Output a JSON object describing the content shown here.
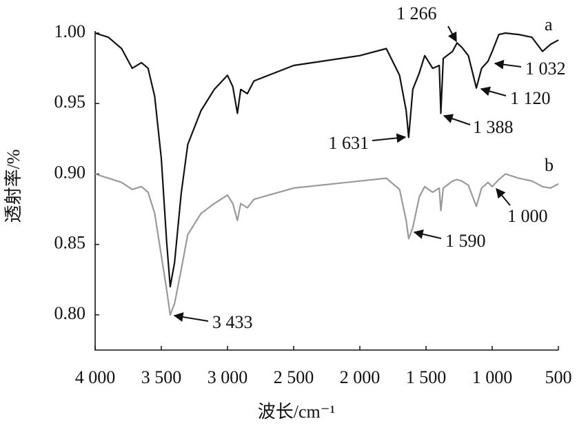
{
  "chart_data": {
    "type": "line",
    "x_label": "波长/cm⁻¹",
    "y_label": "透射率/%",
    "x": [
      4000,
      3900,
      3800,
      3720,
      3650,
      3600,
      3550,
      3500,
      3460,
      3433,
      3400,
      3350,
      3300,
      3200,
      3100,
      3000,
      2960,
      2925,
      2900,
      2850,
      2800,
      2500,
      2000,
      1800,
      1700,
      1650,
      1631,
      1600,
      1550,
      1510,
      1450,
      1400,
      1388,
      1370,
      1300,
      1266,
      1230,
      1180,
      1120,
      1080,
      1032,
      1000,
      950,
      900,
      800,
      700,
      620,
      560,
      500
    ],
    "series": [
      {
        "name": "a",
        "color": "#111111",
        "values": [
          1.0,
          0.997,
          0.989,
          0.975,
          0.979,
          0.975,
          0.955,
          0.911,
          0.852,
          0.82,
          0.837,
          0.886,
          0.921,
          0.945,
          0.96,
          0.97,
          0.962,
          0.943,
          0.96,
          0.957,
          0.966,
          0.977,
          0.984,
          0.989,
          0.97,
          0.945,
          0.926,
          0.96,
          0.972,
          0.984,
          0.975,
          0.977,
          0.943,
          0.982,
          0.987,
          0.993,
          0.99,
          0.984,
          0.961,
          0.975,
          0.98,
          0.987,
          0.999,
          1.0,
          0.999,
          0.997,
          0.987,
          0.992,
          0.995
        ]
      },
      {
        "name": "b",
        "color": "#999999",
        "values": [
          0.9,
          0.897,
          0.894,
          0.889,
          0.891,
          0.887,
          0.872,
          0.842,
          0.818,
          0.8,
          0.808,
          0.832,
          0.857,
          0.872,
          0.879,
          0.885,
          0.879,
          0.867,
          0.879,
          0.876,
          0.882,
          0.89,
          0.895,
          0.897,
          0.889,
          0.867,
          0.854,
          0.862,
          0.884,
          0.891,
          0.887,
          0.89,
          0.874,
          0.89,
          0.895,
          0.896,
          0.895,
          0.892,
          0.877,
          0.89,
          0.894,
          0.891,
          0.896,
          0.9,
          0.897,
          0.895,
          0.891,
          0.89,
          0.893
        ]
      }
    ],
    "annotations": [
      "1 266",
      "1 032",
      "1 120",
      "1 388",
      "1 631",
      "1 590",
      "1 000",
      "3 433"
    ],
    "xlim": [
      4000,
      500
    ],
    "xticks": [
      {
        "value": 4000,
        "label": "4 000"
      },
      {
        "value": 3500,
        "label": "3 500"
      },
      {
        "value": 3000,
        "label": "3 000"
      },
      {
        "value": 2500,
        "label": "2 500"
      },
      {
        "value": 2000,
        "label": "2 000"
      },
      {
        "value": 1500,
        "label": "1 500"
      },
      {
        "value": 1000,
        "label": "1 000"
      },
      500
    ],
    "ylim": [
      0.775,
      1.002
    ],
    "yticks": [
      {
        "value": 1,
        "label": "1.00"
      },
      0.95,
      {
        "value": 0.9,
        "label": "0.90"
      },
      0.85,
      {
        "value": 0.8,
        "label": "0.80"
      }
    ]
  }
}
